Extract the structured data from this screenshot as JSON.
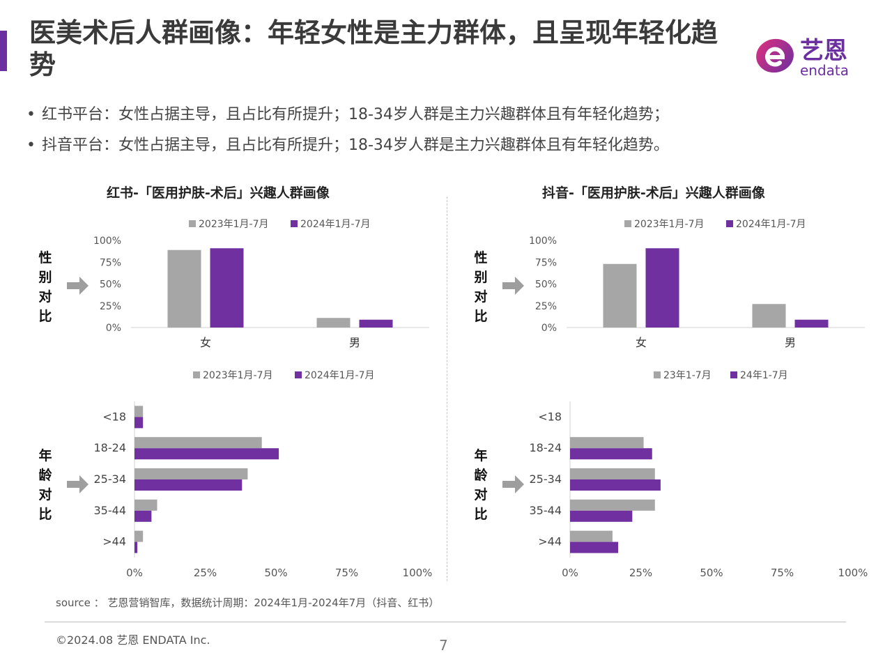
{
  "header": {
    "title": "医美术后人群画像：年轻女性是主力群体，且呈现年轻化趋势",
    "logo_text": "艺恩",
    "logo_sub": "endata",
    "logo_icon": "endata-e-icon"
  },
  "bullets": [
    "红书平台：女性占据主导，且占比有所提升；18-34岁人群是主力兴趣群体且有年轻化趋势；",
    "抖音平台：女性占据主导，且占比有所提升；18-34岁人群是主力兴趣群体且有年轻化趋势。"
  ],
  "section_labels": {
    "gender": "性别对比",
    "age": "年龄对比"
  },
  "colors": {
    "series_2023": "#a6a6a6",
    "series_2024": "#7030a0",
    "accent": "#6b2fa0"
  },
  "panels": [
    {
      "title": "红书-「医用护肤-术后」兴趣人群画像"
    },
    {
      "title": "抖音-「医用护肤-术后」兴趣人群画像"
    }
  ],
  "chart_data": [
    {
      "type": "bar",
      "orientation": "vertical",
      "title": "红书-「医用护肤-术后」兴趣人群画像",
      "categories": [
        "女",
        "男"
      ],
      "series": [
        {
          "name": "2023年1月-7月",
          "values": [
            89,
            11
          ]
        },
        {
          "name": "2024年1月-7月",
          "values": [
            91,
            9
          ]
        }
      ],
      "ylim": [
        0,
        100
      ],
      "yticks": [
        "0%",
        "25%",
        "50%",
        "75%",
        "100%"
      ],
      "legend": "top"
    },
    {
      "type": "bar",
      "orientation": "horizontal",
      "categories": [
        "<18",
        "18-24",
        "25-34",
        "35-44",
        ">44"
      ],
      "series": [
        {
          "name": "2023年1月-7月",
          "values": [
            3,
            45,
            40,
            8,
            3
          ]
        },
        {
          "name": "2024年1月-7月",
          "values": [
            3,
            51,
            38,
            6,
            1
          ]
        }
      ],
      "xlim": [
        0,
        100
      ],
      "xticks": [
        "0%",
        "25%",
        "50%",
        "75%",
        "100%"
      ],
      "legend": "top"
    },
    {
      "type": "bar",
      "orientation": "vertical",
      "title": "抖音-「医用护肤-术后」兴趣人群画像",
      "categories": [
        "女",
        "男"
      ],
      "series": [
        {
          "name": "2023年1月-7月",
          "values": [
            73,
            27
          ]
        },
        {
          "name": "2024年1月-7月",
          "values": [
            91,
            9
          ]
        }
      ],
      "ylim": [
        0,
        100
      ],
      "yticks": [
        "0%",
        "25%",
        "50%",
        "75%",
        "100%"
      ],
      "legend": "top"
    },
    {
      "type": "bar",
      "orientation": "horizontal",
      "categories": [
        "<18",
        "18-24",
        "25-34",
        "35-44",
        ">44"
      ],
      "series": [
        {
          "name": "23年1-7月",
          "values": [
            0,
            26,
            30,
            30,
            15
          ]
        },
        {
          "name": "24年1-7月",
          "values": [
            0,
            29,
            32,
            22,
            17
          ]
        }
      ],
      "xlim": [
        0,
        100
      ],
      "xticks": [
        "0%",
        "25%",
        "50%",
        "75%",
        "100%"
      ],
      "legend": "top"
    }
  ],
  "footer": {
    "source": "source ： 艺恩营销智库，数据统计周期：2024年1月-2024年7月（抖音、红书）",
    "copyright": "©2024.08  艺恩 ENDATA Inc.",
    "page_number": "7"
  }
}
